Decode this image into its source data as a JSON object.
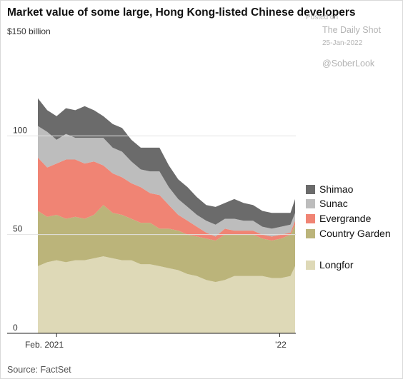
{
  "title": "Market value of some large, Hong Kong-listed Chinese developers",
  "unit_label": "$150 billion",
  "watermark": {
    "posted_on": "Posted on",
    "site": "The Daily Shot",
    "date": "25-Jan-2022",
    "handle": "@SoberLook"
  },
  "source": "Source: FactSet",
  "colors": {
    "Longfor": "#ded9b7",
    "Country Garden": "#bbb47a",
    "Evergrande": "#f08474",
    "Sunac": "#bdbdbd",
    "Shimao": "#6b6b6b"
  },
  "chart_data": {
    "type": "area",
    "stacked": true,
    "title": "Market value of some large, Hong Kong-listed Chinese developers",
    "ylabel": "$150 billion",
    "ylim": [
      0,
      150
    ],
    "yticks": [
      0,
      50,
      100
    ],
    "ytick_labels": [
      "0",
      "50",
      "100"
    ],
    "xtick_labels": [
      "Feb. 2021",
      "'22"
    ],
    "grid": true,
    "legend": "right",
    "x": [
      "2021-01-04",
      "2021-01-18",
      "2021-02-01",
      "2021-02-15",
      "2021-03-01",
      "2021-03-15",
      "2021-03-29",
      "2021-04-12",
      "2021-04-26",
      "2021-05-10",
      "2021-05-24",
      "2021-06-07",
      "2021-06-21",
      "2021-07-05",
      "2021-07-19",
      "2021-08-02",
      "2021-08-16",
      "2021-08-30",
      "2021-09-13",
      "2021-09-27",
      "2021-10-11",
      "2021-10-25",
      "2021-11-08",
      "2021-11-22",
      "2021-12-06",
      "2021-12-20",
      "2022-01-03",
      "2022-01-17",
      "2022-01-24"
    ],
    "series": [
      {
        "name": "Longfor",
        "values": [
          34,
          36,
          37,
          36,
          37,
          37,
          38,
          39,
          38,
          37,
          37,
          35,
          35,
          34,
          33,
          32,
          30,
          29,
          27,
          26,
          27,
          29,
          29,
          29,
          29,
          28,
          28,
          29,
          34
        ]
      },
      {
        "name": "Country Garden",
        "values": [
          28,
          23,
          23,
          22,
          22,
          21,
          22,
          26,
          23,
          23,
          21,
          21,
          21,
          19,
          20,
          20,
          20,
          20,
          21,
          21,
          23,
          21,
          21,
          21,
          19,
          19,
          20,
          21,
          21
        ]
      },
      {
        "name": "Evergrande",
        "values": [
          27,
          25,
          26,
          30,
          29,
          28,
          27,
          20,
          20,
          19,
          18,
          18,
          15,
          17,
          12,
          8,
          7,
          5,
          3,
          2,
          3,
          2,
          2,
          2,
          2,
          2,
          2,
          1,
          2
        ]
      },
      {
        "name": "Sunac",
        "values": [
          16,
          18,
          12,
          13,
          11,
          13,
          12,
          14,
          13,
          13,
          11,
          9,
          11,
          12,
          9,
          8,
          7,
          6,
          6,
          6,
          5,
          6,
          5,
          5,
          4,
          4,
          4,
          4,
          4
        ]
      },
      {
        "name": "Shimao",
        "values": [
          14,
          11,
          12,
          13,
          14,
          16,
          14,
          11,
          12,
          12,
          11,
          11,
          12,
          12,
          11,
          10,
          10,
          9,
          8,
          9,
          8,
          10,
          9,
          8,
          8,
          8,
          7,
          6,
          7
        ]
      }
    ],
    "legend_order": [
      "Shimao",
      "Sunac",
      "Evergrande",
      "Country Garden",
      "Longfor"
    ]
  }
}
